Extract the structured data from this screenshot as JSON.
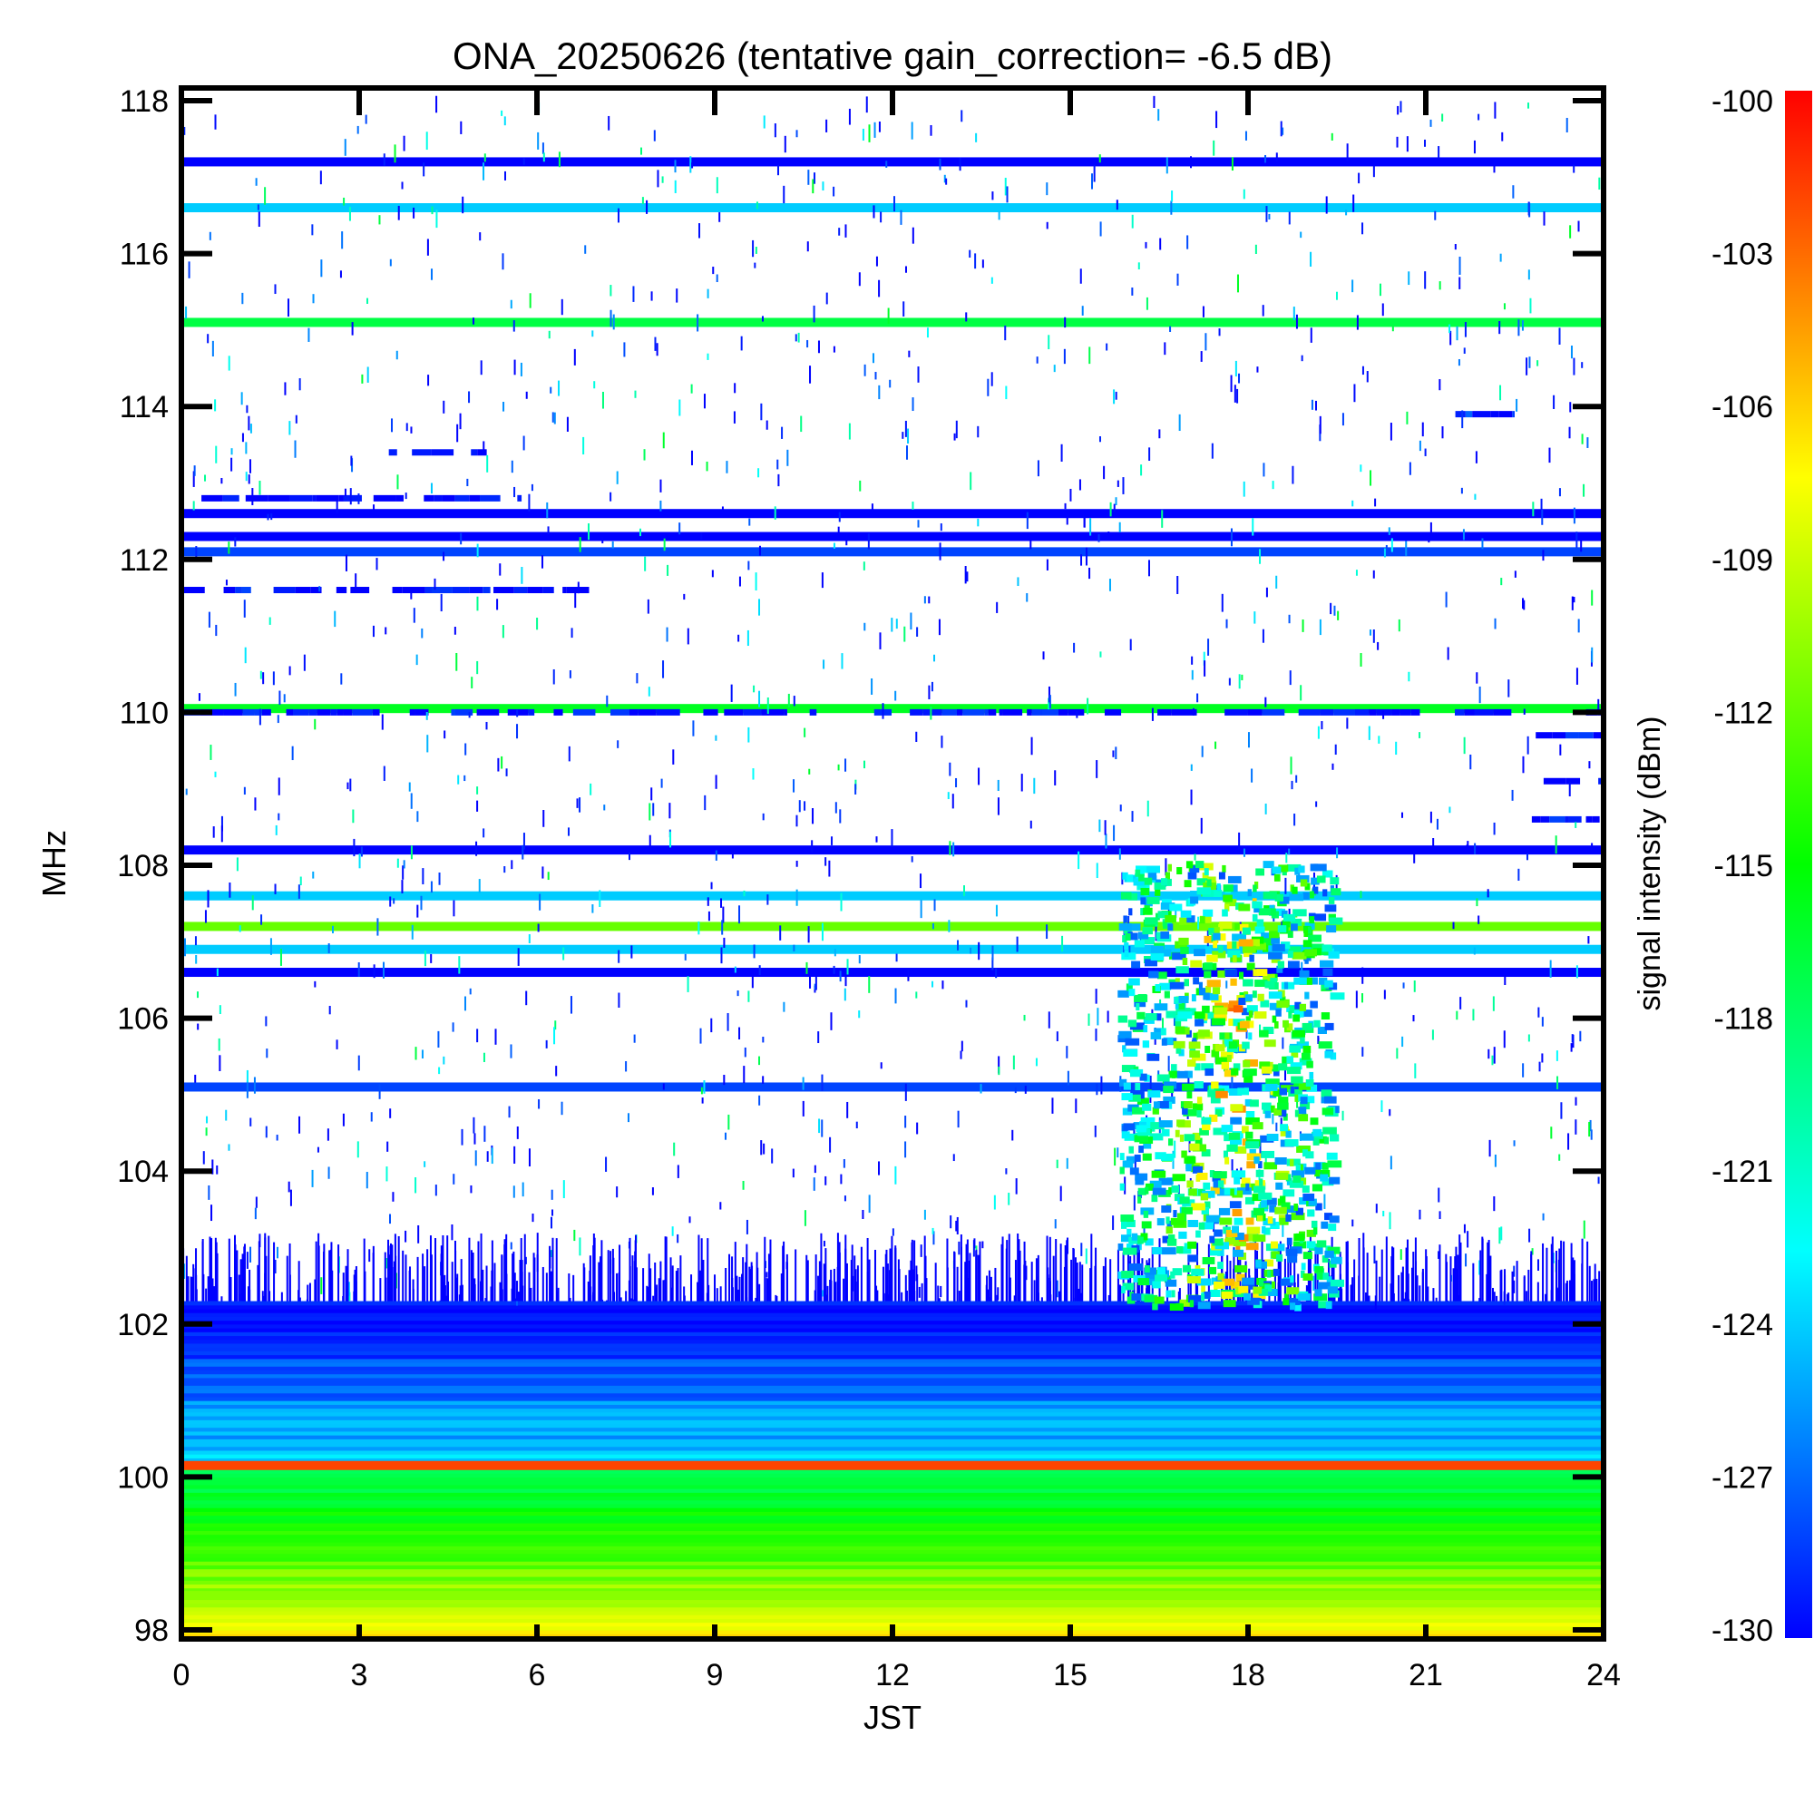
{
  "chart_data": {
    "type": "heatmap",
    "title": "ONA_20250626 (tentative gain_correction= -6.5 dB)",
    "xlabel": "JST",
    "ylabel": "MHz",
    "colorbar_label": "signal intensity (dBm)",
    "xlim": [
      0,
      24
    ],
    "ylim": [
      97.8,
      118.1
    ],
    "zlim": [
      -130,
      -100
    ],
    "x_ticks": [
      "0",
      "3",
      "6",
      "9",
      "12",
      "15",
      "18",
      "21",
      "24"
    ],
    "y_ticks": [
      "98",
      "100",
      "102",
      "104",
      "106",
      "108",
      "110",
      "112",
      "114",
      "116",
      "118"
    ],
    "colorbar_ticks": [
      "-100",
      "-103",
      "-106",
      "-109",
      "-112",
      "-115",
      "-118",
      "-121",
      "-124",
      "-127",
      "-130"
    ],
    "colormap": [
      "#0000ff",
      "#0080ff",
      "#00ffff",
      "#00ff80",
      "#00ff00",
      "#80ff00",
      "#ffff00",
      "#ff8000",
      "#ff0000"
    ],
    "background": "#ffffff",
    "continuous_bands": [
      {
        "freq_mhz": 117.2,
        "level_dbm": -130,
        "from_h": 0,
        "to_h": 24
      },
      {
        "freq_mhz": 116.6,
        "level_dbm": -124,
        "from_h": 0,
        "to_h": 24
      },
      {
        "freq_mhz": 115.1,
        "level_dbm": -117,
        "from_h": 0,
        "to_h": 24
      },
      {
        "freq_mhz": 112.6,
        "level_dbm": -130,
        "from_h": 0,
        "to_h": 24
      },
      {
        "freq_mhz": 112.3,
        "level_dbm": -130,
        "from_h": 0,
        "to_h": 24
      },
      {
        "freq_mhz": 112.1,
        "level_dbm": -128,
        "from_h": 0,
        "to_h": 24
      },
      {
        "freq_mhz": 110.05,
        "level_dbm": -116,
        "from_h": 0,
        "to_h": 24
      },
      {
        "freq_mhz": 108.2,
        "level_dbm": -130,
        "from_h": 0,
        "to_h": 24
      },
      {
        "freq_mhz": 107.6,
        "level_dbm": -124,
        "from_h": 0,
        "to_h": 24
      },
      {
        "freq_mhz": 107.2,
        "level_dbm": -112,
        "from_h": 0,
        "to_h": 24
      },
      {
        "freq_mhz": 106.9,
        "level_dbm": -124,
        "from_h": 0,
        "to_h": 24
      },
      {
        "freq_mhz": 106.6,
        "level_dbm": -130,
        "from_h": 0,
        "to_h": 24
      },
      {
        "freq_mhz": 105.1,
        "level_dbm": -128,
        "from_h": 0,
        "to_h": 24
      },
      {
        "freq_mhz": 100.15,
        "level_dbm": -102,
        "from_h": 0,
        "to_h": 24
      },
      {
        "freq_mhz": 98.45,
        "level_dbm": -111,
        "from_h": 0,
        "to_h": 24
      }
    ],
    "background_noise_bands": [
      {
        "from_mhz": 100.2,
        "to_mhz": 102.3,
        "level_dbm_top": -130,
        "level_dbm_bottom": -124
      },
      {
        "from_mhz": 97.8,
        "to_mhz": 100.1,
        "level_dbm_top": -118,
        "level_dbm_bottom": -107
      }
    ],
    "intermittent_bands": [
      {
        "freq_mhz": 112.8,
        "level_dbm": -130,
        "from_h": 0,
        "to_h": 6
      },
      {
        "freq_mhz": 111.6,
        "level_dbm": -130,
        "from_h": 0,
        "to_h": 7
      },
      {
        "freq_mhz": 113.4,
        "level_dbm": -130,
        "from_h": 3.5,
        "to_h": 6
      },
      {
        "freq_mhz": 110.0,
        "level_dbm": -130,
        "from_h": 0,
        "to_h": 24
      },
      {
        "freq_mhz": 113.9,
        "level_dbm": -129,
        "from_h": 20.9,
        "to_h": 22.5
      },
      {
        "freq_mhz": 109.7,
        "level_dbm": -130,
        "from_h": 22.8,
        "to_h": 24
      },
      {
        "freq_mhz": 109.1,
        "level_dbm": -130,
        "from_h": 22.8,
        "to_h": 24
      },
      {
        "freq_mhz": 108.6,
        "level_dbm": -130,
        "from_h": 22.5,
        "to_h": 24
      }
    ],
    "activity_region": {
      "from_h": 15.8,
      "to_h": 19.4,
      "from_mhz": 102.2,
      "to_mhz": 108.0,
      "level_dbm_min": -128,
      "level_dbm_max": -102
    }
  }
}
